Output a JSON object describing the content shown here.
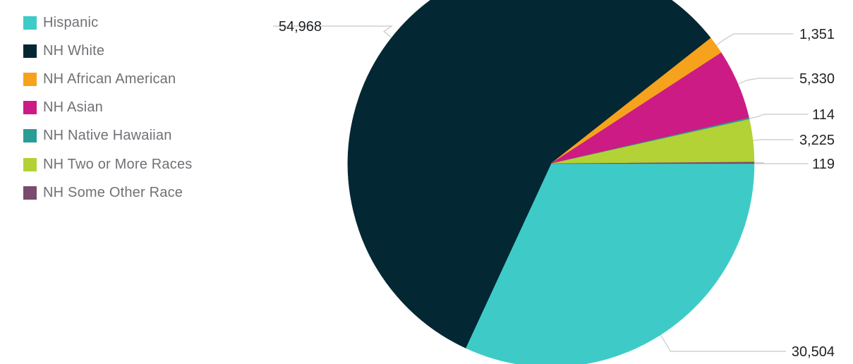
{
  "chart_data": {
    "type": "pie",
    "title": "",
    "legend_position": "top-left",
    "slices": [
      {
        "label": "Hispanic",
        "value": 30504,
        "value_label": "30,504",
        "color": "#3ecbc8"
      },
      {
        "label": "NH White",
        "value": 54968,
        "value_label": "54,968",
        "color": "#032733"
      },
      {
        "label": "NH African American",
        "value": 1351,
        "value_label": "1,351",
        "color": "#f6a21d"
      },
      {
        "label": "NH Asian",
        "value": 5330,
        "value_label": "5,330",
        "color": "#cc1b85"
      },
      {
        "label": "NH Native Hawaiian",
        "value": 114,
        "value_label": "114",
        "color": "#2a9d95"
      },
      {
        "label": "NH Two or More Races",
        "value": 3225,
        "value_label": "3,225",
        "color": "#b2d235"
      },
      {
        "label": "NH Some Other Race",
        "value": 119,
        "value_label": "119",
        "color": "#7b4a6e"
      }
    ]
  }
}
